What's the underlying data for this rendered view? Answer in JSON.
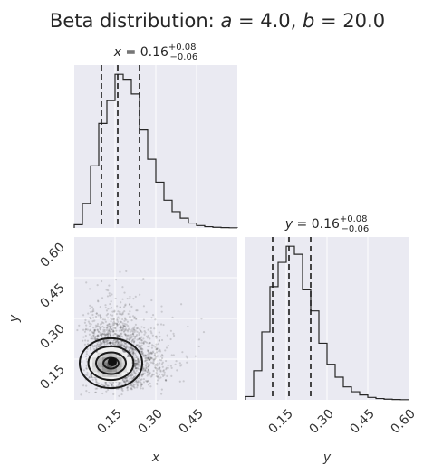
{
  "title": {
    "prefix": "Beta distribution: ",
    "a_sym": "a",
    "a_val": " = 4.0, ",
    "b_sym": "b",
    "b_val": " = 20.0"
  },
  "x_title": {
    "sym": "x",
    "val": " = 0.16",
    "plus": "+0.08",
    "minus": "−0.06"
  },
  "y_title": {
    "sym": "y",
    "val": " = 0.16",
    "plus": "+0.08",
    "minus": "−0.06"
  },
  "labels": {
    "x": "x",
    "y": "y"
  },
  "ticks": {
    "x_bottom": [
      "0.15",
      "0.30",
      "0.45"
    ],
    "y_left": [
      "0.60",
      "0.45",
      "0.30",
      "0.15"
    ],
    "y_hist_bottom": [
      "0.15",
      "0.30",
      "0.45",
      "0.60"
    ]
  },
  "chart_data": [
    {
      "type": "histogram",
      "panel": "x-marginal",
      "xlim": [
        0.0,
        0.6
      ],
      "bin_edges": [
        0.0,
        0.03,
        0.06,
        0.09,
        0.12,
        0.15,
        0.18,
        0.21,
        0.24,
        0.27,
        0.3,
        0.33,
        0.36,
        0.39,
        0.42,
        0.45,
        0.48,
        0.51,
        0.54,
        0.57,
        0.6
      ],
      "counts": [
        2,
        15,
        38,
        64,
        78,
        94,
        91,
        82,
        60,
        42,
        28,
        17,
        10,
        6,
        3,
        1.5,
        0.8,
        0.4,
        0.2,
        0.1
      ],
      "quantiles": [
        0.1,
        0.16,
        0.24
      ],
      "median": 0.16,
      "plus": 0.08,
      "minus": 0.06,
      "grid": true
    },
    {
      "type": "histogram",
      "panel": "y-marginal",
      "xlim": [
        0.0,
        0.6
      ],
      "bin_edges": [
        0.0,
        0.03,
        0.06,
        0.09,
        0.12,
        0.15,
        0.18,
        0.21,
        0.24,
        0.27,
        0.3,
        0.33,
        0.36,
        0.39,
        0.42,
        0.45,
        0.48,
        0.51,
        0.54,
        0.57,
        0.6
      ],
      "counts": [
        2,
        18,
        42,
        70,
        85,
        95,
        90,
        68,
        55,
        35,
        22,
        14,
        8,
        5,
        3,
        1.5,
        0.8,
        0.4,
        0.2,
        0.1
      ],
      "quantiles": [
        0.1,
        0.16,
        0.24
      ],
      "median": 0.16,
      "plus": 0.08,
      "minus": 0.06,
      "grid": true
    },
    {
      "type": "scatter",
      "panel": "joint",
      "xlabel": "x",
      "ylabel": "y",
      "xlim": [
        0.0,
        0.6
      ],
      "ylim": [
        0.0,
        0.6
      ],
      "point_color": "#000000",
      "alpha_a": 4.0,
      "beta_b": 20.0,
      "contour_levels": [
        "0.5 sigma",
        "1 sigma",
        "1.5 sigma",
        "2 sigma"
      ],
      "grid": true
    }
  ]
}
